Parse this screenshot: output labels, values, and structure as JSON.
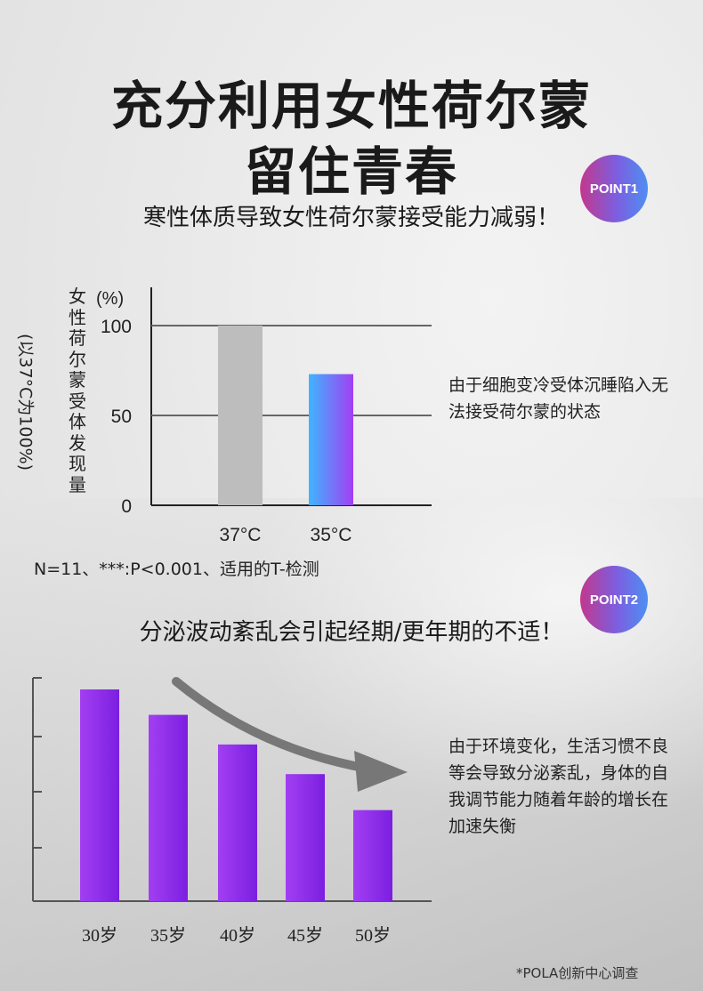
{
  "title_line1": "充分利用女性荷尔蒙",
  "title_line2": "留住青春",
  "points": [
    {
      "badge": "POINT1",
      "heading": "寒性体质导致女性荷尔蒙接受能力减弱！"
    },
    {
      "badge": "POINT2",
      "heading": "分泌波动紊乱会引起经期/更年期的不适！"
    }
  ],
  "chart1_note": "由于细胞变冷受体沉睡陷入无法接受荷尔蒙的状态",
  "chart2_note": "由于环境变化，生活习惯不良等会导致分泌紊乱，身体的自我调节能力随着年龄的增长在加速失衡",
  "stat_note": "N=11、***:P<0.001、适用的T-检测",
  "source_note": "*POLA创新中心调查",
  "chart_data": [
    {
      "type": "bar",
      "ylabel": "女性荷尔蒙受体发现量",
      "ylabel_note": "(以37°C为100%)",
      "unit": "(%)",
      "categories": [
        "37°C",
        "35°C"
      ],
      "values": [
        100,
        73
      ],
      "yticks": [
        0,
        50,
        100
      ],
      "ylim": [
        0,
        105
      ],
      "bar_colors": [
        "#bdbdbd",
        "gradient:#3fb4ff-#a23ff2"
      ],
      "grid": true
    },
    {
      "type": "bar",
      "categories": [
        "30岁",
        "35岁",
        "40岁",
        "45岁",
        "50岁"
      ],
      "values": [
        100,
        88,
        74,
        60,
        43
      ],
      "ylim": [
        0,
        105
      ],
      "bar_color": "#8a2be2",
      "grid": false,
      "trend_arrow": true
    }
  ]
}
